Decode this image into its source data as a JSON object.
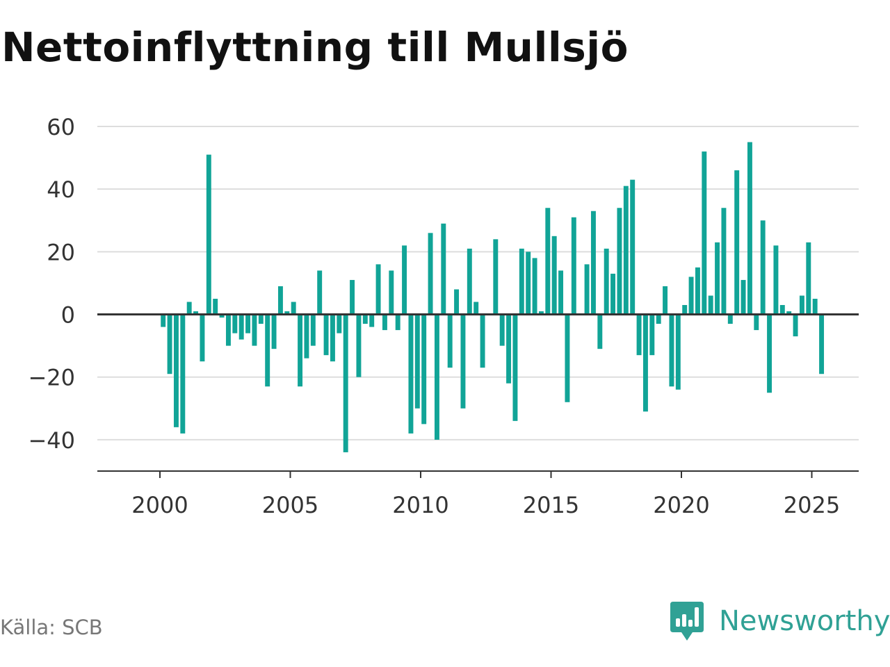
{
  "title": "Nettoinflyttning till Mullsjö",
  "source": "Källa: SCB",
  "brand": {
    "name": "Newsworthy",
    "icon": "newsworthy-logo-icon",
    "color": "#30a195"
  },
  "colors": {
    "bar": "#11a497",
    "grid": "#dddddd",
    "zero_line": "#333333",
    "axis": "#333333",
    "text": "#333333"
  },
  "chart_data": {
    "type": "bar",
    "title": "Nettoinflyttning till Mullsjö",
    "xlabel": "",
    "ylabel": "",
    "ylim": [
      -50,
      60
    ],
    "yticks": [
      -40,
      -20,
      0,
      20,
      40,
      60
    ],
    "ytick_labels": [
      "−40",
      "−20",
      "0",
      "20",
      "40",
      "60"
    ],
    "xlim": [
      1997.6,
      2026.8
    ],
    "xticks": [
      2000,
      2005,
      2010,
      2015,
      2020,
      2025
    ],
    "xtick_labels": [
      "2000",
      "2005",
      "2010",
      "2015",
      "2020",
      "2025"
    ],
    "grid": true,
    "x": [
      2000.125,
      2000.375,
      2000.625,
      2000.875,
      2001.125,
      2001.375,
      2001.625,
      2001.875,
      2002.125,
      2002.375,
      2002.625,
      2002.875,
      2003.125,
      2003.375,
      2003.625,
      2003.875,
      2004.125,
      2004.375,
      2004.625,
      2004.875,
      2005.125,
      2005.375,
      2005.625,
      2005.875,
      2006.125,
      2006.375,
      2006.625,
      2006.875,
      2007.125,
      2007.375,
      2007.625,
      2007.875,
      2008.125,
      2008.375,
      2008.625,
      2008.875,
      2009.125,
      2009.375,
      2009.625,
      2009.875,
      2010.125,
      2010.375,
      2010.625,
      2010.875,
      2011.125,
      2011.375,
      2011.625,
      2011.875,
      2012.125,
      2012.375,
      2012.625,
      2012.875,
      2013.125,
      2013.375,
      2013.625,
      2013.875,
      2014.125,
      2014.375,
      2014.625,
      2014.875,
      2015.125,
      2015.375,
      2015.625,
      2015.875,
      2016.125,
      2016.375,
      2016.625,
      2016.875,
      2017.125,
      2017.375,
      2017.625,
      2017.875,
      2018.125,
      2018.375,
      2018.625,
      2018.875,
      2019.125,
      2019.375,
      2019.625,
      2019.875,
      2020.125,
      2020.375,
      2020.625,
      2020.875,
      2021.125,
      2021.375,
      2021.625,
      2021.875,
      2022.125,
      2022.375,
      2022.625,
      2022.875,
      2023.125,
      2023.375,
      2023.625,
      2023.875,
      2024.125,
      2024.375,
      2024.625,
      2024.875,
      2025.125,
      2025.375
    ],
    "values": [
      -4,
      -19,
      -36,
      -38,
      4,
      1,
      -15,
      51,
      5,
      -1,
      -10,
      -6,
      -8,
      -6,
      -10,
      -3,
      -23,
      -11,
      9,
      1,
      4,
      -23,
      -14,
      -10,
      14,
      -13,
      -15,
      -6,
      -44,
      11,
      -20,
      -3,
      -4,
      16,
      -5,
      14,
      -5,
      22,
      -38,
      -30,
      -35,
      26,
      -40,
      29,
      -17,
      8,
      -30,
      21,
      4,
      -17,
      0,
      24,
      -10,
      -22,
      -34,
      21,
      20,
      18,
      1,
      34,
      25,
      14,
      -28,
      31,
      0,
      16,
      33,
      -11,
      21,
      13,
      34,
      41,
      43,
      -13,
      -31,
      -13,
      -3,
      9,
      -23,
      -24,
      3,
      12,
      15,
      52,
      6,
      23,
      34,
      -3,
      46,
      11,
      55,
      -5,
      30,
      -25,
      22,
      3,
      1,
      -7,
      6,
      23,
      5,
      -19
    ]
  }
}
